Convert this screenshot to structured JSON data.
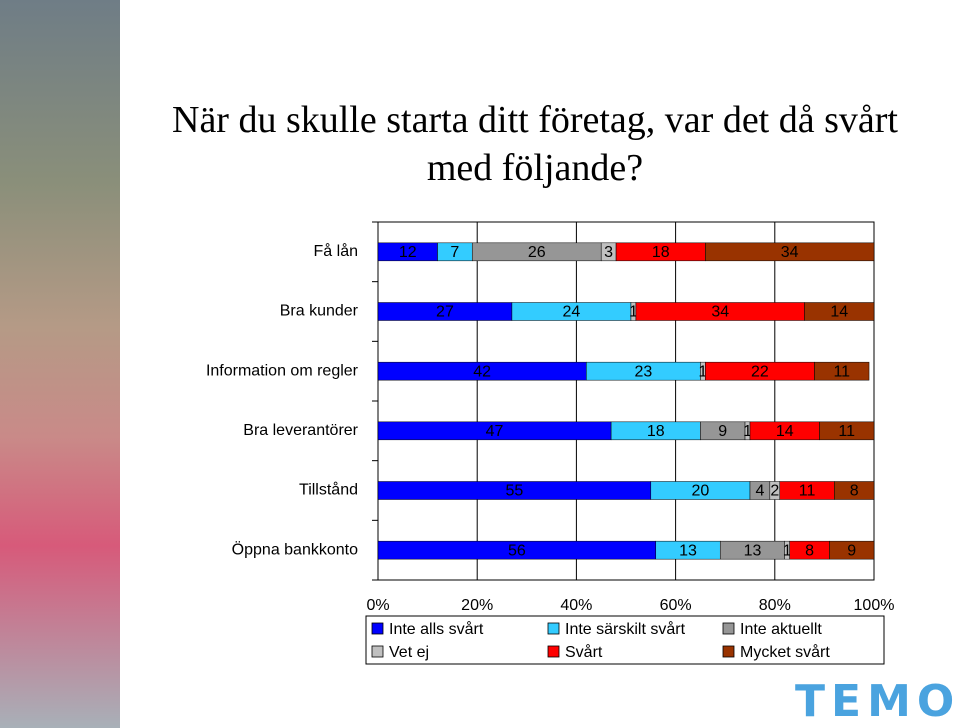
{
  "chart_data": {
    "type": "stacked-bar-horizontal",
    "title": "När du skulle starta ditt företag, var det då svårt med följande?",
    "categories": [
      "Få lån",
      "Bra kunder",
      "Information om regler",
      "Bra leverantörer",
      "Tillstånd",
      "Öppna bankkonto"
    ],
    "series": [
      {
        "name": "Inte alls svårt",
        "color": "#0000ff",
        "values": [
          12,
          27,
          42,
          47,
          55,
          56
        ]
      },
      {
        "name": "Inte särskilt svårt",
        "color": "#33ccff",
        "values": [
          7,
          24,
          23,
          18,
          20,
          13
        ]
      },
      {
        "name": "Inte aktuellt",
        "color": "#969696",
        "values": [
          26,
          null,
          null,
          9,
          4,
          13
        ]
      },
      {
        "name": "Vet ej",
        "color": "#c0c0c0",
        "values": [
          3,
          1,
          1,
          1,
          2,
          1
        ]
      },
      {
        "name": "Svårt",
        "color": "#ff0000",
        "values": [
          18,
          34,
          22,
          14,
          11,
          8
        ]
      },
      {
        "name": "Mycket svårt",
        "color": "#993300",
        "values": [
          34,
          14,
          11,
          11,
          8,
          9
        ]
      }
    ],
    "xlim": [
      0,
      100
    ],
    "xticks": [
      {
        "value": 0,
        "label": "0%"
      },
      {
        "value": 20,
        "label": "20%"
      },
      {
        "value": 40,
        "label": "40%"
      },
      {
        "value": 60,
        "label": "60%"
      },
      {
        "value": 80,
        "label": "80%"
      },
      {
        "value": 100,
        "label": "100%"
      }
    ],
    "grid": true
  },
  "logo": "TEMO"
}
